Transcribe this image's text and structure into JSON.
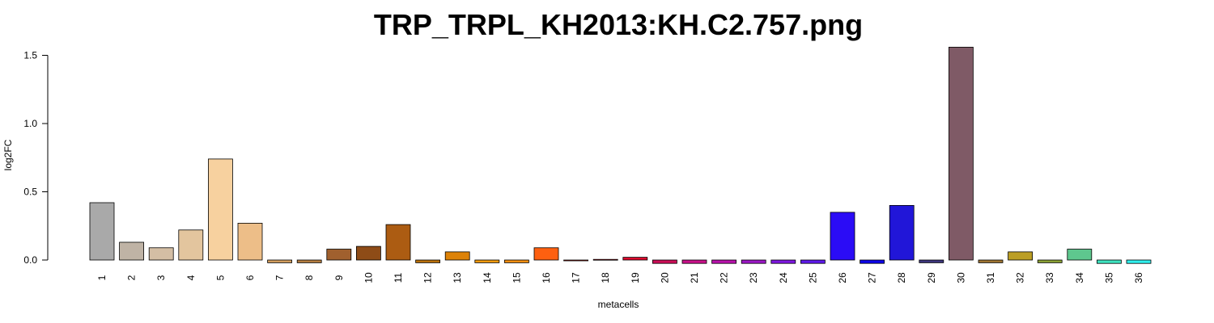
{
  "chart_data": {
    "type": "bar",
    "title": "TRP_TRPL_KH2013:KH.C2.757.png",
    "xlabel": "metacells",
    "ylabel": "log2FC",
    "ylim": [
      -0.03,
      1.55
    ],
    "yticks": [
      "0.0",
      "0.5",
      "1.0",
      "1.5"
    ],
    "categories": [
      "1",
      "2",
      "3",
      "4",
      "5",
      "6",
      "7",
      "8",
      "9",
      "10",
      "11",
      "12",
      "13",
      "14",
      "15",
      "16",
      "17",
      "18",
      "19",
      "20",
      "21",
      "22",
      "23",
      "24",
      "25",
      "26",
      "27",
      "28",
      "29",
      "30",
      "31",
      "32",
      "33",
      "34",
      "35",
      "36"
    ],
    "values": [
      0.42,
      0.13,
      0.09,
      0.22,
      0.74,
      0.27,
      -0.02,
      -0.02,
      0.08,
      0.1,
      0.26,
      -0.02,
      0.06,
      -0.02,
      -0.02,
      0.09,
      -0.005,
      0.005,
      0.02,
      -0.025,
      -0.025,
      -0.025,
      -0.025,
      -0.025,
      -0.025,
      0.35,
      -0.025,
      0.4,
      -0.02,
      1.56,
      -0.02,
      0.06,
      -0.02,
      0.08,
      -0.025,
      -0.025
    ],
    "colors": [
      "#a9a9a9",
      "#bfb3a5",
      "#d4bea4",
      "#e3c59e",
      "#f7d19f",
      "#edbe88",
      "#d29d5e",
      "#b47d40",
      "#a0602e",
      "#8e4c17",
      "#ac5c12",
      "#b9700b",
      "#dd8207",
      "#f19a0e",
      "#f68f11",
      "#fe6010",
      "#f91d0a",
      "#ed0b16",
      "#dd0b2e",
      "#cb0e57",
      "#c9108a",
      "#b912ac",
      "#9b18c5",
      "#7e17e0",
      "#5e19ea",
      "#2b0cf6",
      "#0d04e8",
      "#2116d8",
      "#3d357c",
      "#7f5a66",
      "#9e7432",
      "#bb9e25",
      "#8aa135",
      "#5ec78e",
      "#3fe3c0",
      "#31f0ee"
    ]
  }
}
